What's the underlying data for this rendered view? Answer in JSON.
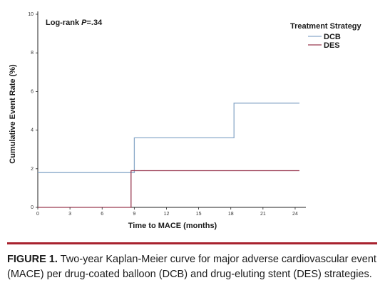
{
  "chart_data": {
    "type": "line",
    "step": true,
    "annotation_prefix": "Log-rank ",
    "annotation_var": "P",
    "annotation_value": "=.34",
    "xlabel": "Time to MACE (months)",
    "ylabel": "Cumulative Event Rate (%)",
    "xlim": [
      0,
      25
    ],
    "ylim": [
      0,
      10
    ],
    "xticks": [
      0,
      3,
      6,
      9,
      12,
      15,
      18,
      21,
      24
    ],
    "yticks": [
      0,
      2,
      4,
      6,
      8,
      10
    ],
    "grid": false,
    "legend": {
      "title": "Treatment Strategy",
      "placement": "top-right"
    },
    "series": [
      {
        "name": "DCB",
        "color": "#8aa9c9",
        "x": [
          0,
          9,
          9,
          18.3,
          18.3,
          24.4
        ],
        "y": [
          1.8,
          1.8,
          3.6,
          3.6,
          5.4,
          5.4
        ]
      },
      {
        "name": "DES",
        "color": "#9a3a52",
        "x": [
          0,
          8.7,
          8.7,
          24.4
        ],
        "y": [
          0,
          0,
          1.9,
          1.9
        ]
      }
    ]
  },
  "caption": {
    "lead": "FIGURE 1.",
    "text": " Two-year Kaplan-Meier curve for major adverse cardiovascular event (MACE) per drug-coated balloon (DCB) and drug-eluting stent (DES) strategies."
  }
}
